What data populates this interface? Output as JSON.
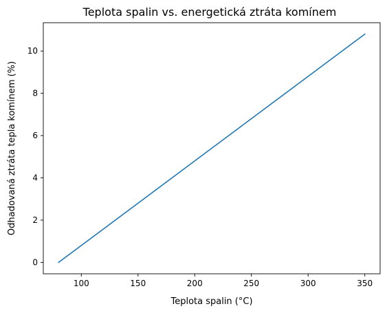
{
  "chart_data": {
    "type": "line",
    "title": "Teplota spalin vs. energetická ztráta komínem",
    "xlabel": "Teplota spalin (°C)",
    "ylabel": "Odhadovaná ztráta tepla komínem (%)",
    "xlim": [
      66.5,
      363.5
    ],
    "ylim": [
      -0.54,
      11.34
    ],
    "xticks": [
      100,
      150,
      200,
      250,
      300,
      350
    ],
    "yticks": [
      0,
      2,
      4,
      6,
      8,
      10
    ],
    "grid": false,
    "series": [
      {
        "color": "#1f77b4",
        "x": [
          80,
          350
        ],
        "y": [
          0.0,
          10.8
        ]
      }
    ]
  }
}
